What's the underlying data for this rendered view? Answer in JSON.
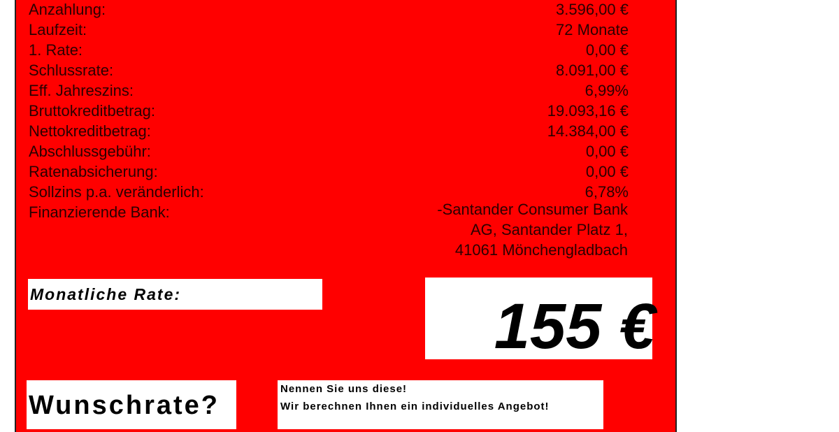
{
  "details": [
    {
      "label": "Anzahlung:",
      "value": "3.596,00 €"
    },
    {
      "label": "Laufzeit:",
      "value": "72 Monate"
    },
    {
      "label": "1. Rate:",
      "value": "0,00 €"
    },
    {
      "label": "Schlussrate:",
      "value": "8.091,00 €"
    },
    {
      "label": "Eff. Jahreszins:",
      "value": "6,99%"
    },
    {
      "label": "Bruttokreditbetrag:",
      "value": "19.093,16 €"
    },
    {
      "label": "Nettokreditbetrag:",
      "value": "14.384,00 €"
    },
    {
      "label": "Abschlussgebühr:",
      "value": "0,00 €"
    },
    {
      "label": "Ratenabsicherung:",
      "value": "0,00 €"
    },
    {
      "label": "Sollzins p.a. veränderlich:",
      "value": "6,78%"
    },
    {
      "label": "Finanzierende Bank:",
      "value": ""
    }
  ],
  "bank_lines": [
    "-Santander Consumer Bank",
    "AG, Santander Platz 1,",
    "41061 Mönchengladbach"
  ],
  "monthly": {
    "label": "Monatliche Rate:",
    "value": "155 €"
  },
  "wish": {
    "label": "Wunschrate?",
    "line1": "Nennen Sie uns diese!",
    "line2": "Wir berechnen Ihnen ein individuelles Angebot!"
  },
  "colors": {
    "panel": "#ff0000",
    "text": "#2a0000"
  }
}
